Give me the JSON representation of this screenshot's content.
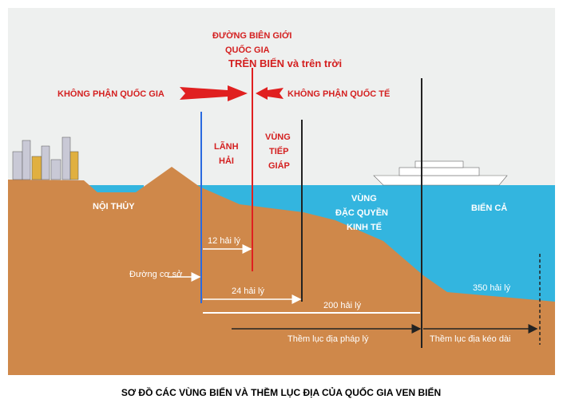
{
  "diagram": {
    "border_label": [
      "ĐƯỜNG BIÊN GIỚI",
      "QUỐC GIA",
      "TRÊN BIỂN và trên trời"
    ],
    "airspace": {
      "national": "KHÔNG PHẬN QUỐC GIA",
      "international": "KHÔNG PHẬN QUỐC TẾ"
    },
    "zones": {
      "territorial_sea": [
        "LÃNH",
        "HẢI"
      ],
      "contiguous_zone": [
        "VÙNG",
        "TIẾP",
        "GIÁP"
      ],
      "internal_waters": "NỘI THỦY",
      "eez": [
        "VÙNG",
        "ĐẶC QUYỀN",
        "KINH TẾ"
      ],
      "high_seas": "BIỂN CẢ"
    },
    "distances": {
      "d12": "12 hải lý",
      "d24": "24 hải lý",
      "d200": "200 hải lý",
      "d350": "350 hải lý"
    },
    "baseline": "Đường cơ sở",
    "shelf": {
      "legal": "Thềm lục địa pháp lý",
      "extended": "Thềm lục địa kéo dài"
    },
    "caption": "SƠ ĐỒ CÁC VÙNG BIỂN VÀ THỀM LỤC ĐỊA CỦA QUỐC GIA VEN BIỂN"
  }
}
